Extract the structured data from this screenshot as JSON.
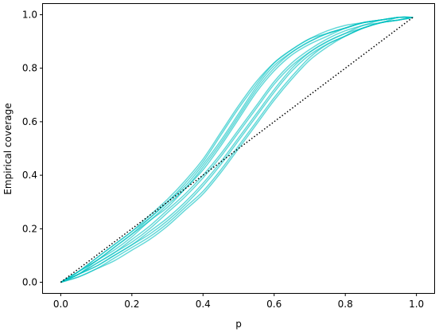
{
  "chart_data": {
    "type": "line",
    "title": "",
    "xlabel": "p",
    "ylabel": "Empirical coverage",
    "xlim": [
      -0.05,
      1.05
    ],
    "ylim": [
      -0.04,
      1.04
    ],
    "xticks": [
      0.0,
      0.2,
      0.4,
      0.6,
      0.8,
      1.0
    ],
    "xtick_labels": [
      "0.0",
      "0.2",
      "0.4",
      "0.6",
      "0.8",
      "1.0"
    ],
    "yticks": [
      0.0,
      0.2,
      0.4,
      0.6,
      0.8,
      1.0
    ],
    "ytick_labels": [
      "0.0",
      "0.2",
      "0.4",
      "0.6",
      "0.8",
      "1.0"
    ],
    "grid": false,
    "legend": "none",
    "series_color": "#00bfbf",
    "diagonal_color": "#000000",
    "x": [
      0.0,
      0.05,
      0.1,
      0.15,
      0.2,
      0.25,
      0.3,
      0.35,
      0.4,
      0.45,
      0.5,
      0.55,
      0.6,
      0.65,
      0.7,
      0.75,
      0.8,
      0.85,
      0.9,
      0.95,
      0.99
    ],
    "series": [
      {
        "values": [
          0.0,
          0.04,
          0.09,
          0.14,
          0.19,
          0.25,
          0.31,
          0.38,
          0.46,
          0.56,
          0.66,
          0.75,
          0.82,
          0.87,
          0.91,
          0.94,
          0.96,
          0.97,
          0.98,
          0.99,
          0.99
        ]
      },
      {
        "values": [
          0.0,
          0.04,
          0.09,
          0.14,
          0.19,
          0.24,
          0.3,
          0.37,
          0.45,
          0.55,
          0.65,
          0.74,
          0.82,
          0.87,
          0.91,
          0.93,
          0.95,
          0.97,
          0.98,
          0.99,
          0.99
        ]
      },
      {
        "values": [
          0.0,
          0.04,
          0.08,
          0.13,
          0.18,
          0.24,
          0.3,
          0.36,
          0.44,
          0.53,
          0.63,
          0.73,
          0.81,
          0.86,
          0.9,
          0.93,
          0.95,
          0.97,
          0.98,
          0.99,
          0.99
        ]
      },
      {
        "values": [
          0.0,
          0.04,
          0.08,
          0.13,
          0.18,
          0.23,
          0.29,
          0.35,
          0.43,
          0.52,
          0.62,
          0.72,
          0.8,
          0.86,
          0.9,
          0.93,
          0.95,
          0.97,
          0.98,
          0.99,
          0.99
        ]
      },
      {
        "values": [
          0.0,
          0.03,
          0.08,
          0.12,
          0.17,
          0.23,
          0.28,
          0.35,
          0.42,
          0.51,
          0.61,
          0.71,
          0.79,
          0.85,
          0.89,
          0.92,
          0.95,
          0.97,
          0.98,
          0.99,
          0.99
        ]
      },
      {
        "values": [
          0.0,
          0.03,
          0.07,
          0.11,
          0.16,
          0.21,
          0.27,
          0.33,
          0.4,
          0.48,
          0.57,
          0.66,
          0.75,
          0.82,
          0.87,
          0.91,
          0.94,
          0.96,
          0.98,
          0.99,
          0.99
        ]
      },
      {
        "values": [
          0.0,
          0.03,
          0.07,
          0.11,
          0.15,
          0.2,
          0.26,
          0.32,
          0.39,
          0.47,
          0.56,
          0.65,
          0.74,
          0.81,
          0.86,
          0.9,
          0.93,
          0.96,
          0.97,
          0.99,
          0.99
        ]
      },
      {
        "values": [
          0.0,
          0.03,
          0.06,
          0.1,
          0.14,
          0.19,
          0.24,
          0.3,
          0.37,
          0.45,
          0.54,
          0.63,
          0.72,
          0.8,
          0.86,
          0.9,
          0.93,
          0.95,
          0.97,
          0.98,
          0.99
        ]
      },
      {
        "values": [
          0.0,
          0.03,
          0.06,
          0.1,
          0.14,
          0.18,
          0.23,
          0.29,
          0.36,
          0.44,
          0.53,
          0.62,
          0.71,
          0.79,
          0.85,
          0.89,
          0.92,
          0.95,
          0.97,
          0.98,
          0.99
        ]
      },
      {
        "values": [
          0.0,
          0.02,
          0.05,
          0.09,
          0.13,
          0.17,
          0.22,
          0.28,
          0.34,
          0.42,
          0.51,
          0.6,
          0.69,
          0.77,
          0.84,
          0.89,
          0.92,
          0.95,
          0.97,
          0.98,
          0.99
        ]
      },
      {
        "values": [
          0.0,
          0.02,
          0.05,
          0.08,
          0.12,
          0.16,
          0.21,
          0.27,
          0.33,
          0.41,
          0.5,
          0.59,
          0.68,
          0.76,
          0.83,
          0.88,
          0.92,
          0.95,
          0.97,
          0.98,
          0.99
        ]
      }
    ],
    "diagonal": {
      "x": [
        0.0,
        0.99
      ],
      "y": [
        0.0,
        0.99
      ]
    }
  }
}
